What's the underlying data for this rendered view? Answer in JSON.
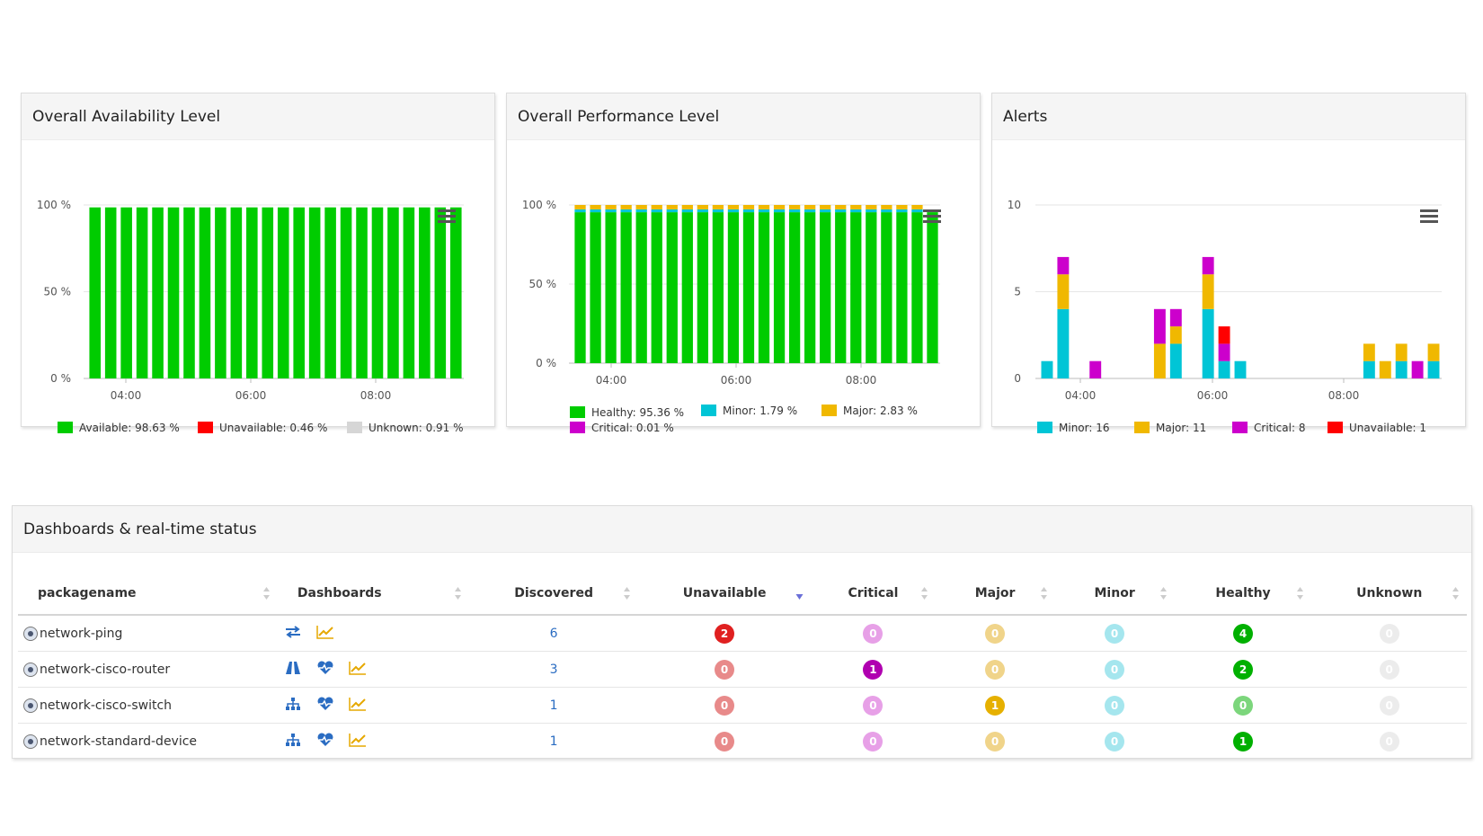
{
  "colors": {
    "available": "#00cc00",
    "unavailable": "#ff0000",
    "unknown": "#d6d6d6",
    "healthy": "#00cc00",
    "minor": "#00c5d6",
    "major": "#f0b800",
    "critical": "#cc00cc"
  },
  "availability": {
    "title": "Overall Availability Level",
    "chart_data": {
      "type": "bar",
      "stacked": true,
      "yticks": [
        "100 %",
        "50 %",
        "0 %"
      ],
      "ylim": [
        0,
        100
      ],
      "xticks": [
        "04:00",
        "06:00",
        "08:00"
      ],
      "series": [
        {
          "name": "Available",
          "values": [
            98.6,
            98.6,
            98.6,
            98.6,
            98.6,
            98.6,
            98.6,
            98.6,
            98.6,
            98.6,
            98.6,
            98.6,
            98.6,
            98.6,
            98.6,
            98.6,
            98.6,
            98.6,
            98.6,
            98.6,
            98.6,
            98.6,
            98.6,
            98.6
          ]
        },
        {
          "name": "Unavailable",
          "values": [
            0,
            0,
            0,
            0,
            0,
            0,
            0,
            0,
            0,
            0,
            0,
            0,
            0,
            0,
            0,
            0,
            0,
            0,
            0,
            0,
            0,
            0,
            0,
            0
          ]
        },
        {
          "name": "Unknown",
          "values": [
            0,
            0,
            0,
            0,
            0,
            0,
            0,
            0,
            0,
            0,
            0,
            0,
            0,
            0,
            0,
            0,
            0,
            0,
            0,
            0,
            0,
            0,
            0,
            0
          ]
        }
      ],
      "legend": [
        "Available: 98.63 %",
        "Unavailable: 0.46 %",
        "Unknown: 0.91 %"
      ]
    }
  },
  "performance": {
    "title": "Overall Performance Level",
    "chart_data": {
      "type": "bar",
      "stacked": true,
      "yticks": [
        "100 %",
        "50 %",
        "0 %"
      ],
      "ylim": [
        0,
        100
      ],
      "xticks": [
        "04:00",
        "06:00",
        "08:00"
      ],
      "series": [
        {
          "name": "Healthy",
          "values": [
            95.4,
            95.4,
            95.4,
            95.4,
            95.4,
            95.4,
            95.4,
            95.4,
            95.4,
            95.4,
            95.4,
            95.4,
            95.4,
            95.4,
            95.4,
            95.4,
            95.4,
            95.4,
            95.4,
            95.4,
            95.4,
            95.4,
            95.4,
            95.4
          ]
        },
        {
          "name": "Minor",
          "values": [
            1.8,
            1.8,
            1.8,
            1.8,
            1.8,
            1.8,
            1.8,
            1.8,
            1.8,
            1.8,
            1.8,
            1.8,
            1.8,
            1.8,
            1.8,
            1.8,
            1.8,
            1.8,
            1.8,
            1.8,
            1.8,
            1.8,
            1.8,
            0
          ]
        },
        {
          "name": "Major",
          "values": [
            2.8,
            2.8,
            2.8,
            2.8,
            2.8,
            2.8,
            2.8,
            2.8,
            2.8,
            2.8,
            2.8,
            2.8,
            2.8,
            2.8,
            2.8,
            2.8,
            2.8,
            2.8,
            2.8,
            2.8,
            2.8,
            2.8,
            2.8,
            0
          ]
        },
        {
          "name": "Critical",
          "values": [
            0,
            0,
            0,
            0,
            0,
            0,
            0,
            0,
            0,
            0,
            0,
            0,
            0,
            0,
            0,
            0,
            0,
            0,
            0,
            0,
            0,
            0,
            0,
            0
          ]
        }
      ],
      "legend": [
        "Healthy: 95.36 %",
        "Minor: 1.79 %",
        "Major: 2.83 %",
        "Critical: 0.01 %"
      ]
    }
  },
  "alerts": {
    "title": "Alerts",
    "chart_data": {
      "type": "bar",
      "stacked": true,
      "yticks": [
        "10",
        "5",
        "0"
      ],
      "ylim": [
        0,
        10
      ],
      "xticks": [
        "04:00",
        "06:00",
        "08:00"
      ],
      "series": [
        {
          "name": "Minor",
          "values": [
            1,
            4,
            0,
            0,
            0,
            0,
            0,
            0,
            2,
            0,
            4,
            1,
            1,
            0,
            0,
            0,
            0,
            0,
            0,
            0,
            1,
            0,
            1,
            0,
            1
          ]
        },
        {
          "name": "Major",
          "values": [
            0,
            2,
            0,
            0,
            0,
            0,
            0,
            2,
            1,
            0,
            2,
            0,
            0,
            0,
            0,
            0,
            0,
            0,
            0,
            0,
            1,
            1,
            1,
            0,
            1
          ]
        },
        {
          "name": "Critical",
          "values": [
            0,
            1,
            0,
            1,
            0,
            0,
            0,
            2,
            1,
            0,
            1,
            1,
            0,
            0,
            0,
            0,
            0,
            0,
            0,
            0,
            0,
            0,
            0,
            1,
            0
          ]
        },
        {
          "name": "Unavailable",
          "values": [
            0,
            0,
            0,
            0,
            0,
            0,
            0,
            0,
            0,
            0,
            0,
            1,
            0,
            0,
            0,
            0,
            0,
            0,
            0,
            0,
            0,
            0,
            0,
            0,
            0
          ]
        }
      ],
      "legend": [
        "Minor: 16",
        "Major: 11",
        "Critical: 8",
        "Unavailable: 1"
      ]
    }
  },
  "dashboards": {
    "title": "Dashboards & real-time status",
    "columns": [
      "packagename",
      "Dashboards",
      "Discovered",
      "Unavailable",
      "Critical",
      "Major",
      "Minor",
      "Healthy",
      "Unknown"
    ],
    "rows": [
      {
        "name": "network-ping",
        "icons": [
          "arrows-icon",
          "chart-line-icon"
        ],
        "discovered": "6",
        "unavailable": "2",
        "critical": "0",
        "major": "0",
        "minor": "0",
        "healthy": "4",
        "unknown": "0"
      },
      {
        "name": "network-cisco-router",
        "icons": [
          "road-icon",
          "heartbeat-icon",
          "chart-line-icon"
        ],
        "discovered": "3",
        "unavailable": "0",
        "critical": "1",
        "major": "0",
        "minor": "0",
        "healthy": "2",
        "unknown": "0"
      },
      {
        "name": "network-cisco-switch",
        "icons": [
          "sitemap-icon",
          "heartbeat-icon",
          "chart-line-icon"
        ],
        "discovered": "1",
        "unavailable": "0",
        "critical": "0",
        "major": "1",
        "minor": "0",
        "healthy": "0",
        "unknown": "0"
      },
      {
        "name": "network-standard-device",
        "icons": [
          "sitemap-icon",
          "heartbeat-icon",
          "chart-line-icon"
        ],
        "discovered": "1",
        "unavailable": "0",
        "critical": "0",
        "major": "0",
        "minor": "0",
        "healthy": "1",
        "unknown": "0"
      }
    ]
  }
}
